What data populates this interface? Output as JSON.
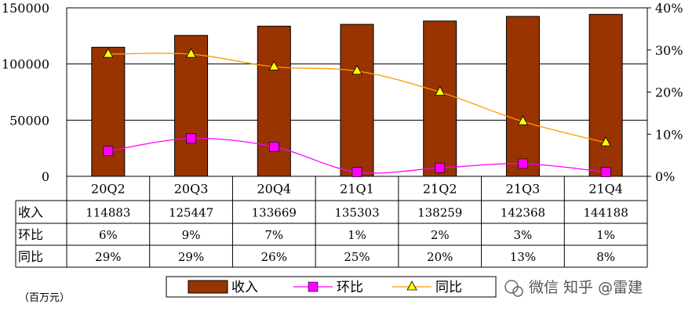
{
  "chart_data": {
    "type": "bar",
    "categories": [
      "20Q2",
      "20Q3",
      "20Q4",
      "21Q1",
      "21Q2",
      "21Q3",
      "21Q4"
    ],
    "series": [
      {
        "name": "收入",
        "type": "bar",
        "axis": "left",
        "color": "#993300",
        "values": [
          114883,
          125447,
          133669,
          135303,
          138259,
          142368,
          144188
        ]
      },
      {
        "name": "环比",
        "type": "line",
        "axis": "right",
        "color": "#ff00ff",
        "marker": "square",
        "values": [
          6,
          9,
          7,
          1,
          2,
          3,
          1
        ]
      },
      {
        "name": "同比",
        "type": "line",
        "axis": "right",
        "color": "#ff9900",
        "marker": "triangle",
        "values": [
          29,
          29,
          26,
          25,
          20,
          13,
          8
        ]
      }
    ],
    "ylim": [
      0,
      150000
    ],
    "yticks": [
      "0",
      "50000",
      "100000",
      "150000"
    ],
    "y2lim": [
      0,
      40
    ],
    "y2ticks": [
      "0%",
      "10%",
      "20%",
      "30%",
      "40%"
    ],
    "grid": true,
    "legend_position": "bottom",
    "table": {
      "rows": [
        {
          "label": "收入",
          "cells": [
            "114883",
            "125447",
            "133669",
            "135303",
            "138259",
            "142368",
            "144188"
          ]
        },
        {
          "label": "环比",
          "cells": [
            "6%",
            "9%",
            "7%",
            "1%",
            "2%",
            "3%",
            "1%"
          ]
        },
        {
          "label": "同比",
          "cells": [
            "29%",
            "29%",
            "26%",
            "25%",
            "20%",
            "13%",
            "8%"
          ]
        }
      ]
    },
    "unit_label": "（百万元）"
  },
  "watermark": "微信 知乎 @雷建"
}
